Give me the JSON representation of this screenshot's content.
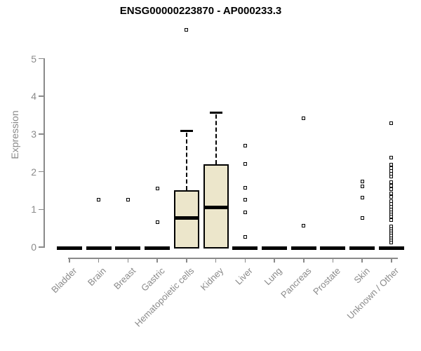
{
  "chart_data": {
    "type": "boxplot",
    "title": "ENSG00000223870 - AP000233.3",
    "ylabel": "Expression",
    "xlabel": "",
    "ylim": [
      0,
      5
    ],
    "y_ticks": [
      0,
      1,
      2,
      3,
      4,
      5
    ],
    "grid": false,
    "legend": "none",
    "categories": [
      "Bladder",
      "Brain",
      "Breast",
      "Gastric",
      "Hematopoietic cells",
      "Kidney",
      "Liver",
      "Lung",
      "Pancreas",
      "Prostate",
      "Skin",
      "Unknown / Other"
    ],
    "series": [
      {
        "category": "Bladder",
        "q1": 0,
        "median": 0,
        "q3": 0,
        "whisker_low": 0,
        "whisker_high": 0,
        "outliers": []
      },
      {
        "category": "Brain",
        "q1": 0,
        "median": 0,
        "q3": 0,
        "whisker_low": 0,
        "whisker_high": 0,
        "outliers": [
          1.26
        ]
      },
      {
        "category": "Breast",
        "q1": 0,
        "median": 0,
        "q3": 0,
        "whisker_low": 0,
        "whisker_high": 0,
        "outliers": [
          1.25
        ]
      },
      {
        "category": "Gastric",
        "q1": 0,
        "median": 0,
        "q3": 0,
        "whisker_low": 0,
        "whisker_high": 0,
        "outliers": [
          1.56,
          0.67
        ]
      },
      {
        "category": "Hematopoietic cells",
        "q1": 0,
        "median": 0.78,
        "q3": 1.51,
        "whisker_low": 0,
        "whisker_high": 3.08,
        "outliers": [
          5.77
        ]
      },
      {
        "category": "Kidney",
        "q1": 0,
        "median": 1.06,
        "q3": 2.19,
        "whisker_low": 0,
        "whisker_high": 3.56,
        "outliers": []
      },
      {
        "category": "Liver",
        "q1": 0,
        "median": 0,
        "q3": 0,
        "whisker_low": 0,
        "whisker_high": 0,
        "outliers": [
          2.7,
          2.2,
          1.57,
          1.25,
          0.93,
          0.27
        ]
      },
      {
        "category": "Lung",
        "q1": 0,
        "median": 0,
        "q3": 0,
        "whisker_low": 0,
        "whisker_high": 0,
        "outliers": []
      },
      {
        "category": "Pancreas",
        "q1": 0,
        "median": 0,
        "q3": 0,
        "whisker_low": 0,
        "whisker_high": 0,
        "outliers": [
          3.42,
          0.56
        ]
      },
      {
        "category": "Prostate",
        "q1": 0,
        "median": 0,
        "q3": 0,
        "whisker_low": 0,
        "whisker_high": 0,
        "outliers": []
      },
      {
        "category": "Skin",
        "q1": 0,
        "median": 0,
        "q3": 0,
        "whisker_low": 0,
        "whisker_high": 0,
        "outliers": [
          1.74,
          1.62,
          1.31,
          0.78
        ]
      },
      {
        "category": "Unknown / Other",
        "q1": 0,
        "median": 0,
        "q3": 0,
        "whisker_low": 0,
        "whisker_high": 0,
        "outliers": [
          3.28,
          2.37,
          2.18,
          2.1,
          2.02,
          1.95,
          1.88,
          1.73,
          1.63,
          1.53,
          1.43,
          1.33,
          1.22,
          1.15,
          1.08,
          1.0,
          0.93,
          0.86,
          0.81,
          0.72,
          0.55,
          0.48,
          0.42,
          0.36,
          0.3,
          0.24,
          0.17,
          0.12
        ]
      }
    ],
    "style": {
      "box_fill": "#ECE6CB",
      "box_stroke": "#000000",
      "median_color": "#000000",
      "axis_color": "#8A8A8A",
      "title_color": "#000000",
      "marker": "open-square"
    }
  }
}
